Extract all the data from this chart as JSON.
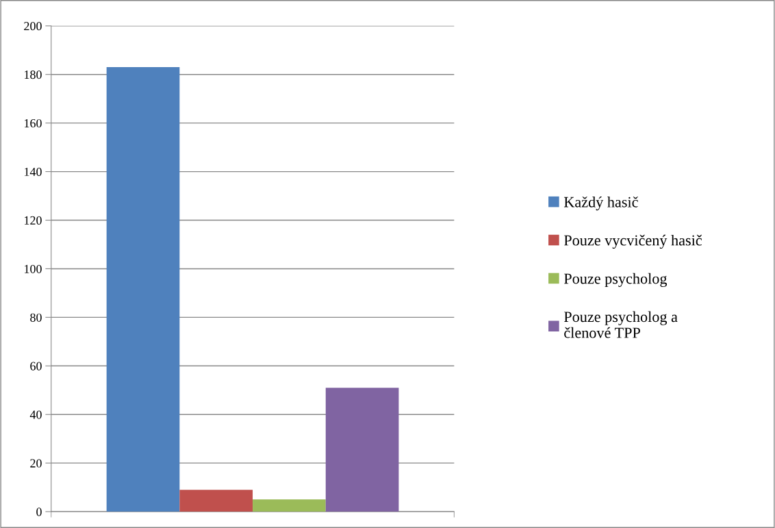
{
  "chart_data": {
    "type": "bar",
    "categories": [
      null
    ],
    "series": [
      {
        "name": "Každý hasič",
        "color": "#4f81bd",
        "values": [
          183
        ]
      },
      {
        "name": "Pouze vycvičený hasič",
        "color": "#c0504d",
        "values": [
          9
        ]
      },
      {
        "name": "Pouze psycholog",
        "color": "#9bbb59",
        "values": [
          5
        ]
      },
      {
        "name": "Pouze psycholog a\nčlenové TPP",
        "color": "#8064a2",
        "values": [
          51
        ]
      }
    ],
    "ylim": [
      0,
      200
    ],
    "yticks": [
      0,
      20,
      40,
      60,
      80,
      100,
      120,
      140,
      160,
      180,
      200
    ],
    "grid": "y",
    "legend": "right"
  }
}
